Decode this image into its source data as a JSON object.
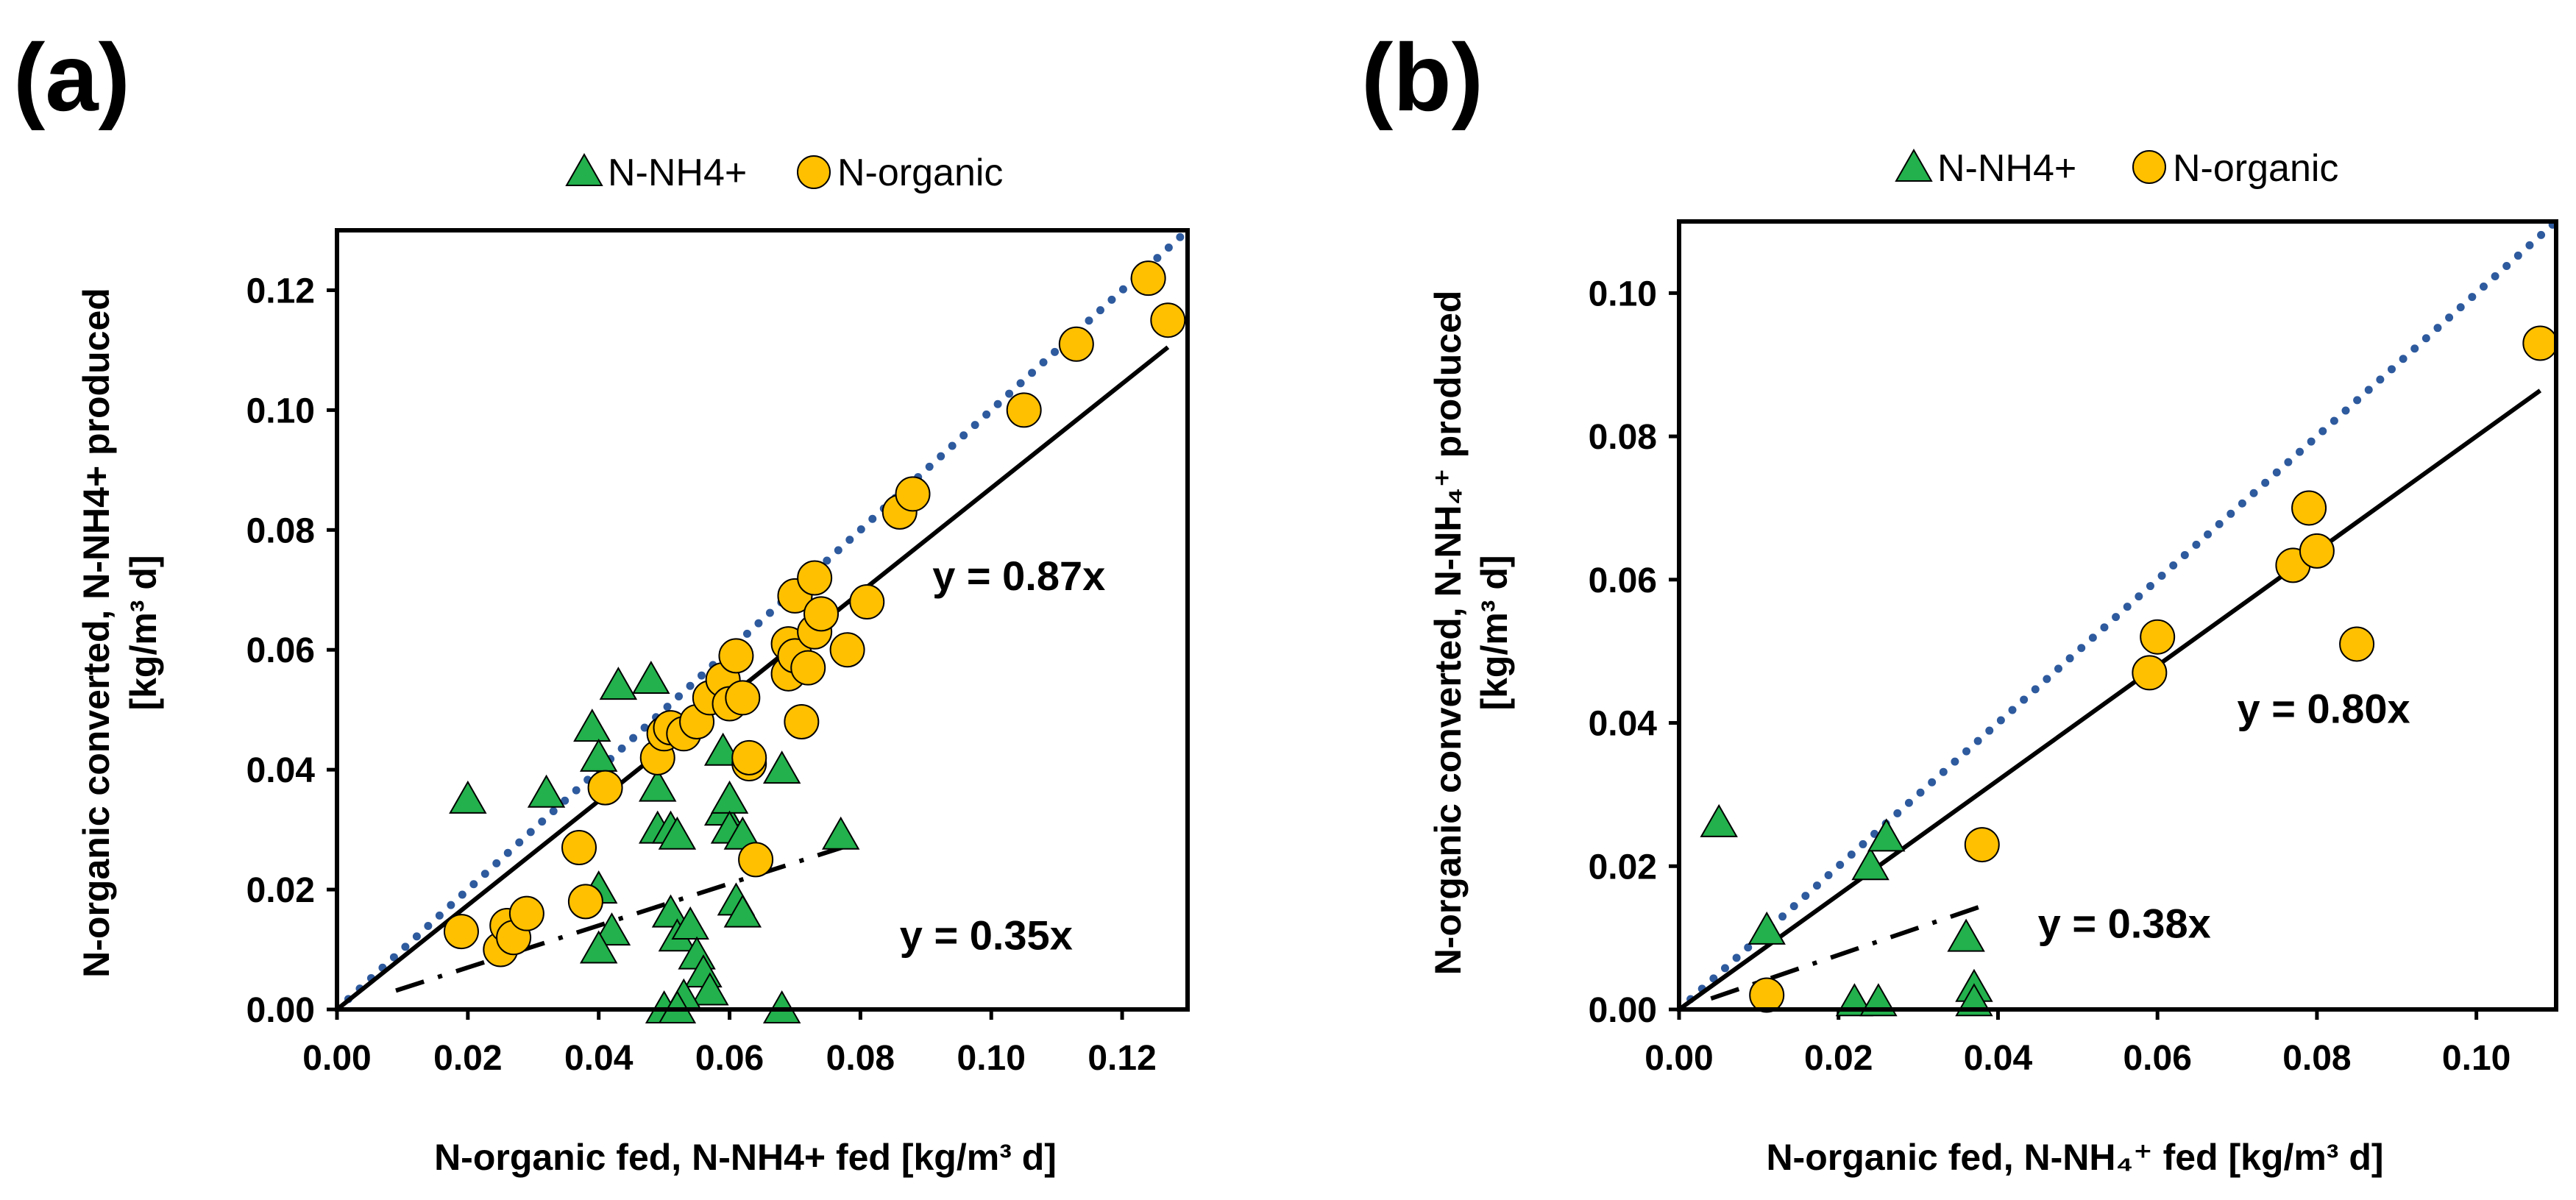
{
  "chart_data": [
    {
      "type": "scatter",
      "panel_label": "(a)",
      "title": "",
      "xlabel": "N-organic fed, N-NH4+ fed [kg/m³ d]",
      "ylabel_line1": "N-organic converted, N-NH4+ produced",
      "ylabel_line2": "[kg/m³ d]",
      "xlim": [
        0,
        0.13
      ],
      "ylim": [
        0,
        0.13
      ],
      "x_ticks": [
        0,
        0.02,
        0.04,
        0.06,
        0.08,
        0.1,
        0.12
      ],
      "x_tick_labels": [
        "0.00",
        "0.02",
        "0.04",
        "0.06",
        "0.08",
        "0.10",
        "0.12"
      ],
      "y_ticks": [
        0,
        0.02,
        0.04,
        0.06,
        0.08,
        0.1,
        0.12
      ],
      "y_tick_labels": [
        "0.00",
        "0.02",
        "0.04",
        "0.06",
        "0.08",
        "0.10",
        "0.12"
      ],
      "legend": {
        "position": "top",
        "entries": [
          "N-NH4+",
          "N-organic"
        ]
      },
      "series": [
        {
          "name": "N-NH4+",
          "marker": "triangle",
          "color": "#22b14c",
          "points": [
            [
              0.02,
              0.035
            ],
            [
              0.032,
              0.036
            ],
            [
              0.039,
              0.047
            ],
            [
              0.04,
              0.042
            ],
            [
              0.043,
              0.054
            ],
            [
              0.048,
              0.055
            ],
            [
              0.049,
              0.037
            ],
            [
              0.049,
              0.03
            ],
            [
              0.051,
              0.03
            ],
            [
              0.052,
              0.029
            ],
            [
              0.04,
              0.02
            ],
            [
              0.042,
              0.013
            ],
            [
              0.04,
              0.01
            ],
            [
              0.051,
              0.016
            ],
            [
              0.052,
              0.012
            ],
            [
              0.054,
              0.014
            ],
            [
              0.055,
              0.009
            ],
            [
              0.056,
              0.006
            ],
            [
              0.057,
              0.003
            ],
            [
              0.053,
              0.002
            ],
            [
              0.05,
              0.0
            ],
            [
              0.052,
              0.0
            ],
            [
              0.059,
              0.043
            ],
            [
              0.059,
              0.033
            ],
            [
              0.06,
              0.035
            ],
            [
              0.06,
              0.03
            ],
            [
              0.062,
              0.029
            ],
            [
              0.061,
              0.018
            ],
            [
              0.062,
              0.016
            ],
            [
              0.068,
              0.04
            ],
            [
              0.068,
              0.0
            ],
            [
              0.077,
              0.029
            ]
          ]
        },
        {
          "name": "N-organic",
          "marker": "circle",
          "color": "#ffc000",
          "points": [
            [
              0.019,
              0.013
            ],
            [
              0.025,
              0.01
            ],
            [
              0.026,
              0.014
            ],
            [
              0.027,
              0.012
            ],
            [
              0.029,
              0.016
            ],
            [
              0.037,
              0.027
            ],
            [
              0.038,
              0.018
            ],
            [
              0.041,
              0.037
            ],
            [
              0.049,
              0.042
            ],
            [
              0.05,
              0.046
            ],
            [
              0.051,
              0.047
            ],
            [
              0.053,
              0.046
            ],
            [
              0.055,
              0.048
            ],
            [
              0.057,
              0.052
            ],
            [
              0.059,
              0.055
            ],
            [
              0.06,
              0.051
            ],
            [
              0.061,
              0.059
            ],
            [
              0.062,
              0.052
            ],
            [
              0.063,
              0.041
            ],
            [
              0.063,
              0.042
            ],
            [
              0.064,
              0.025
            ],
            [
              0.069,
              0.056
            ],
            [
              0.069,
              0.061
            ],
            [
              0.07,
              0.059
            ],
            [
              0.07,
              0.069
            ],
            [
              0.071,
              0.048
            ],
            [
              0.072,
              0.057
            ],
            [
              0.073,
              0.072
            ],
            [
              0.073,
              0.063
            ],
            [
              0.074,
              0.066
            ],
            [
              0.078,
              0.06
            ],
            [
              0.081,
              0.068
            ],
            [
              0.086,
              0.083
            ],
            [
              0.088,
              0.086
            ],
            [
              0.105,
              0.1
            ],
            [
              0.113,
              0.111
            ],
            [
              0.124,
              0.122
            ],
            [
              0.127,
              0.115
            ]
          ]
        }
      ],
      "lines": [
        {
          "name": "1:1 line",
          "style": "dotted",
          "color": "#2e5a9e",
          "slope": 1.0,
          "x_range": [
            0,
            0.13
          ]
        },
        {
          "name": "N-organic fit",
          "style": "solid",
          "color": "#000000",
          "slope": 0.87,
          "x_range": [
            0,
            0.127
          ]
        },
        {
          "name": "N-NH4+ fit",
          "style": "dashdot",
          "color": "#000000",
          "slope": 0.35,
          "x_range": [
            0.009,
            0.078
          ]
        }
      ],
      "annotations": [
        {
          "text": "y = 0.87x",
          "x": 0.091,
          "y": 0.07
        },
        {
          "text": "y = 0.35x",
          "x": 0.086,
          "y": 0.01
        }
      ]
    },
    {
      "type": "scatter",
      "panel_label": "(b)",
      "title": "",
      "xlabel": "N-organic fed, N-NH₄⁺ fed [kg/m³ d]",
      "ylabel_line1": "N-organic converted, N-NH₄⁺ produced",
      "ylabel_line2": "[kg/m³ d]",
      "xlim": [
        0,
        0.11
      ],
      "ylim": [
        0,
        0.11
      ],
      "x_ticks": [
        0,
        0.02,
        0.04,
        0.06,
        0.08,
        0.1
      ],
      "x_tick_labels": [
        "0.00",
        "0.02",
        "0.04",
        "0.06",
        "0.08",
        "0.10"
      ],
      "y_ticks": [
        0,
        0.02,
        0.04,
        0.06,
        0.08,
        0.1
      ],
      "y_tick_labels": [
        "0.00",
        "0.02",
        "0.04",
        "0.06",
        "0.08",
        "0.10"
      ],
      "legend": {
        "position": "top",
        "entries": [
          "N-NH4+",
          "N-organic"
        ]
      },
      "series": [
        {
          "name": "N-NH4+",
          "marker": "triangle",
          "color": "#22b14c",
          "points": [
            [
              0.005,
              0.026
            ],
            [
              0.011,
              0.011
            ],
            [
              0.022,
              0.001
            ],
            [
              0.024,
              0.02
            ],
            [
              0.025,
              0.001
            ],
            [
              0.026,
              0.024
            ],
            [
              0.036,
              0.01
            ],
            [
              0.037,
              0.003
            ],
            [
              0.037,
              0.001
            ]
          ]
        },
        {
          "name": "N-organic",
          "marker": "circle",
          "color": "#ffc000",
          "points": [
            [
              0.011,
              0.002
            ],
            [
              0.038,
              0.023
            ],
            [
              0.059,
              0.047
            ],
            [
              0.06,
              0.052
            ],
            [
              0.077,
              0.062
            ],
            [
              0.079,
              0.07
            ],
            [
              0.08,
              0.064
            ],
            [
              0.085,
              0.051
            ],
            [
              0.108,
              0.093
            ]
          ]
        }
      ],
      "lines": [
        {
          "name": "1:1 line",
          "style": "dotted",
          "color": "#2e5a9e",
          "slope": 1.0,
          "x_range": [
            0,
            0.11
          ]
        },
        {
          "name": "N-organic fit",
          "style": "solid",
          "color": "#000000",
          "slope": 0.8,
          "x_range": [
            0,
            0.108
          ]
        },
        {
          "name": "N-NH4+ fit",
          "style": "dashdot",
          "color": "#000000",
          "slope": 0.38,
          "x_range": [
            0.004,
            0.038
          ]
        }
      ],
      "annotations": [
        {
          "text": "y = 0.80x",
          "x": 0.07,
          "y": 0.04
        },
        {
          "text": "y = 0.38x",
          "x": 0.045,
          "y": 0.01
        }
      ]
    }
  ]
}
